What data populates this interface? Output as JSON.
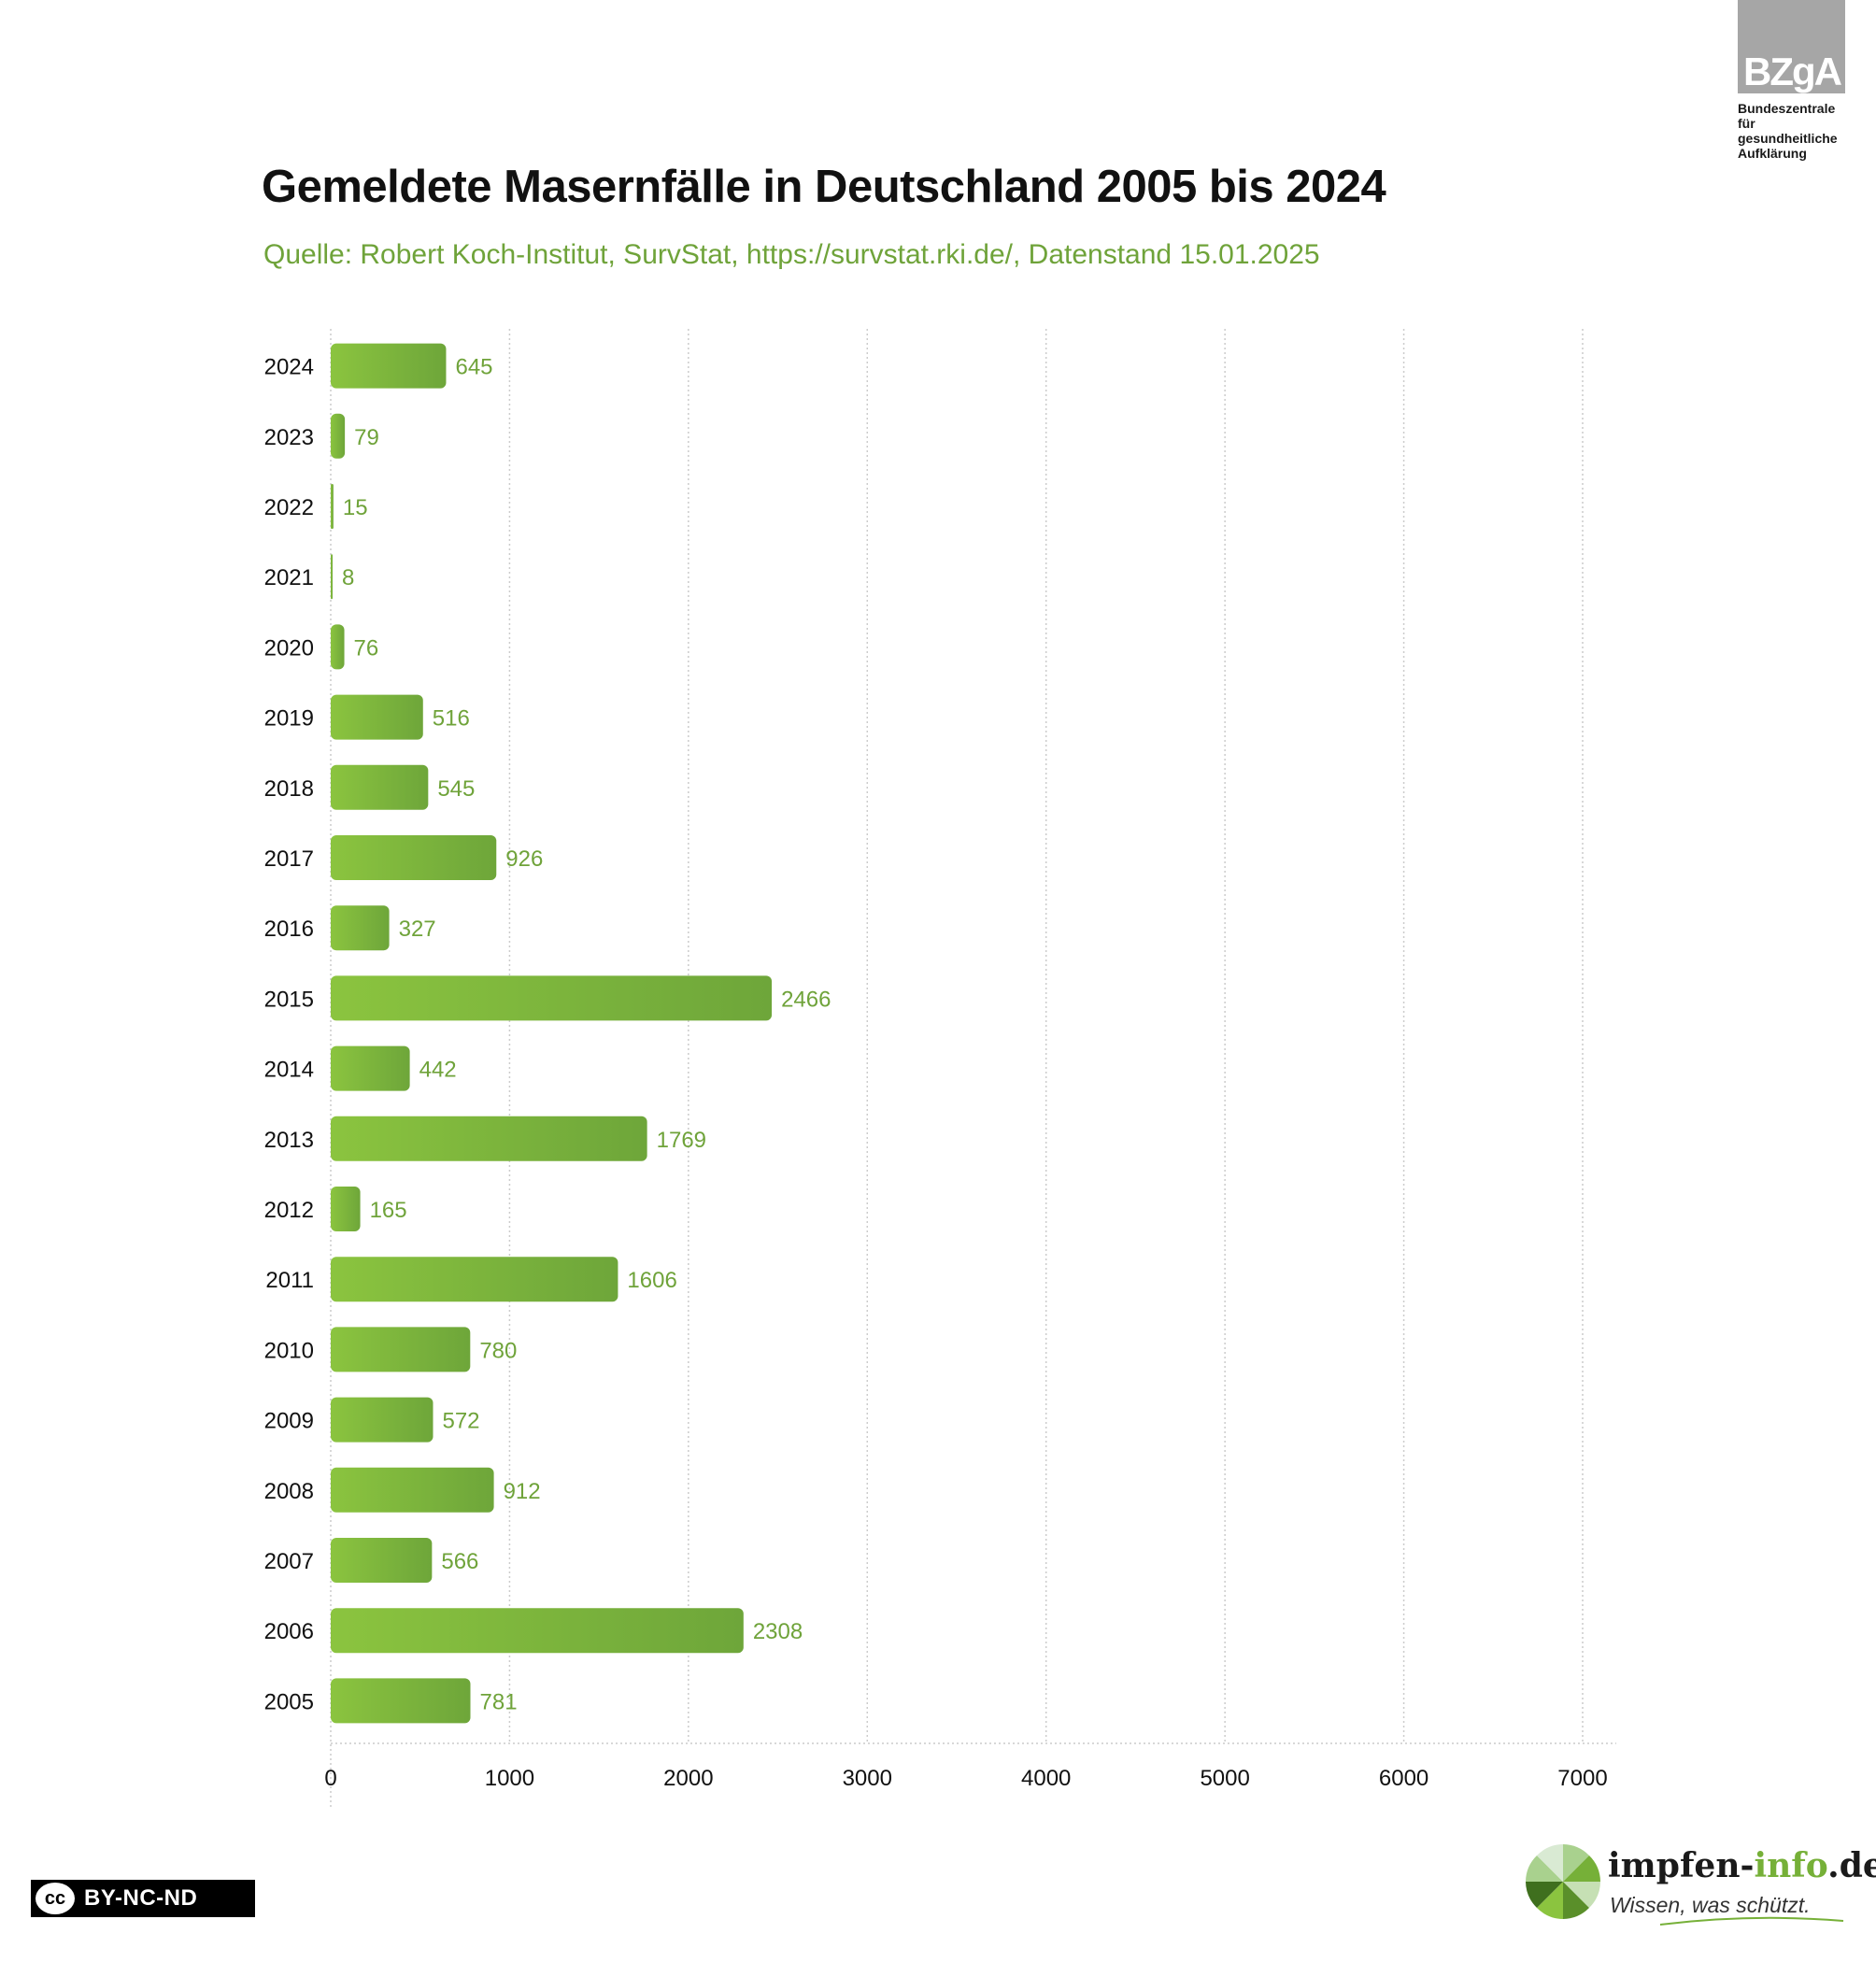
{
  "logo": {
    "mark": "BZgA",
    "lines": [
      "Bundeszentrale",
      "für",
      "gesundheitliche",
      "Aufklärung"
    ]
  },
  "title": "Gemeldete Masernfälle in Deutschland 2005 bis 2024",
  "subtitle": "Quelle: Robert Koch-Institut, SurvStat, https://survstat.rki.de/, Datenstand 15.01.2025",
  "license": {
    "icon": "cc-icon",
    "cc": "cc",
    "text": "BY-NC-ND"
  },
  "brand": {
    "name_part1": "impfen-",
    "name_part2": "info",
    "name_part3": ".de",
    "slogan": "Wissen, was schützt.",
    "accent": "#76b038"
  },
  "colors": {
    "bar_start": "#8bc43f",
    "bar_end": "#6ea63a",
    "value_label": "#6fa33a",
    "grid": "#cccccc"
  },
  "chart_data": {
    "type": "bar",
    "orientation": "horizontal",
    "title": "Gemeldete Masernfälle in Deutschland 2005 bis 2024",
    "subtitle": "Quelle: Robert Koch-Institut, SurvStat, https://survstat.rki.de/, Datenstand 15.01.2025",
    "xlabel": "",
    "ylabel": "",
    "categories": [
      "2024",
      "2023",
      "2022",
      "2021",
      "2020",
      "2019",
      "2018",
      "2017",
      "2016",
      "2015",
      "2014",
      "2013",
      "2012",
      "2011",
      "2010",
      "2009",
      "2008",
      "2007",
      "2006",
      "2005"
    ],
    "values": [
      645,
      79,
      15,
      8,
      76,
      516,
      545,
      926,
      327,
      2466,
      442,
      1769,
      165,
      1606,
      780,
      572,
      912,
      566,
      2308,
      781
    ],
    "xlim": [
      0,
      7000
    ],
    "xticks": [
      0,
      1000,
      2000,
      3000,
      4000,
      5000,
      6000,
      7000
    ],
    "grid": "vertical-dotted",
    "legend": "none",
    "data_labels": true
  }
}
